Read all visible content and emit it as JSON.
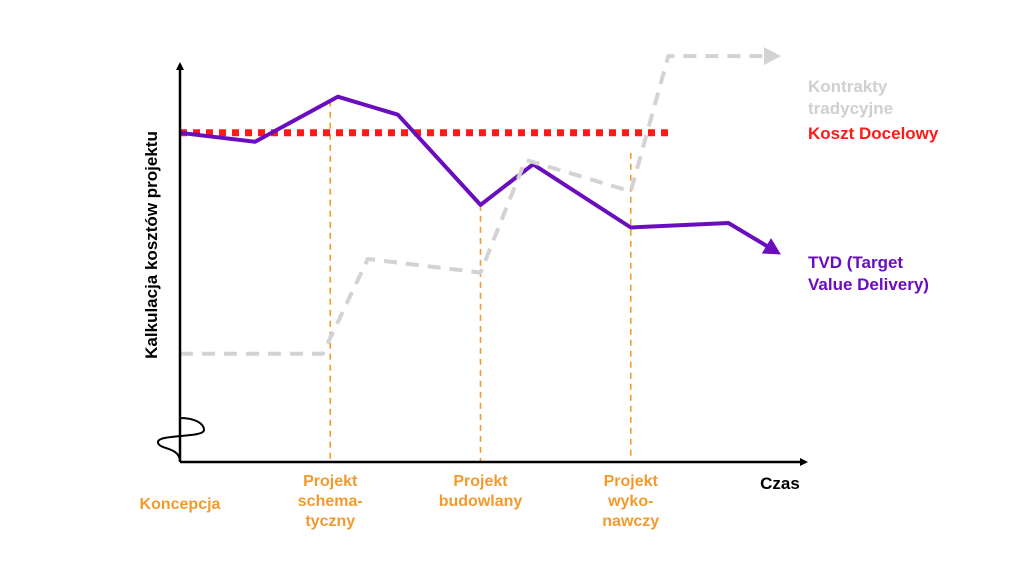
{
  "chart_data": {
    "type": "line",
    "ylabel": "Kalkulacja kosztów projektu",
    "xlabel": "Czas",
    "phases": [
      {
        "lines": [
          "Koncepcja"
        ],
        "x": 0
      },
      {
        "lines": [
          "Projekt",
          "schema-",
          "tyczny"
        ],
        "x": 1
      },
      {
        "lines": [
          "Projekt",
          "budowlany"
        ],
        "x": 2
      },
      {
        "lines": [
          "Projekt",
          "wyko-",
          "nawczy"
        ],
        "x": 3
      }
    ],
    "xlim": [
      0,
      4
    ],
    "ylim": [
      0,
      100
    ],
    "series": [
      {
        "name_lines": [
          "Koszt Docelowy"
        ],
        "color": "#ff1a1a",
        "style": "dotted",
        "points": [
          [
            0,
            73
          ],
          [
            3.25,
            73
          ]
        ]
      },
      {
        "name_lines": [
          "TVD (Target",
          "Value Delivery)"
        ],
        "color": "#6a0dbf",
        "style": "solid-arrow",
        "points": [
          [
            0,
            73
          ],
          [
            0.5,
            71
          ],
          [
            1.05,
            81
          ],
          [
            1.45,
            77
          ],
          [
            2.0,
            57
          ],
          [
            2.35,
            66
          ],
          [
            3.0,
            52
          ],
          [
            3.65,
            53
          ],
          [
            4.0,
            46
          ]
        ]
      },
      {
        "name_lines": [
          "Kontrakty",
          "tradycyjne"
        ],
        "color": "#d3d3d3",
        "style": "dashed-arrow",
        "points": [
          [
            0,
            24
          ],
          [
            0.95,
            24
          ],
          [
            1.25,
            45
          ],
          [
            2.0,
            42
          ],
          [
            2.3,
            67
          ],
          [
            3.0,
            60
          ],
          [
            3.25,
            90
          ],
          [
            4.0,
            90
          ]
        ]
      }
    ]
  }
}
